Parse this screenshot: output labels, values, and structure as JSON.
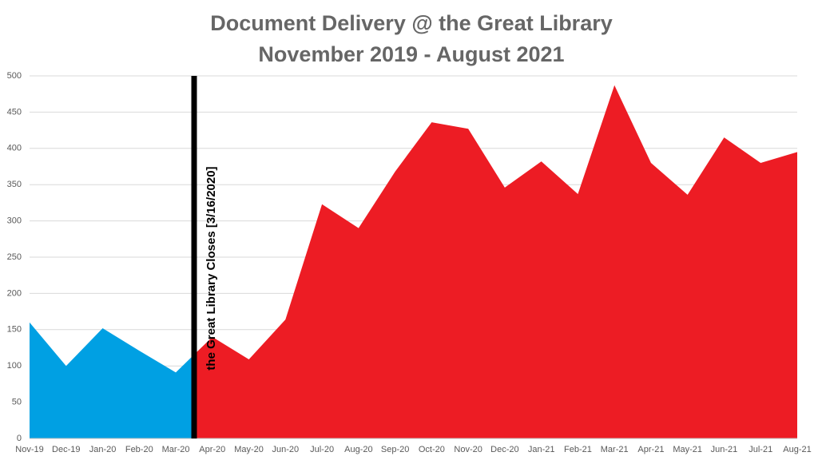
{
  "chart_data": {
    "type": "area",
    "title": "Document Delivery @ the Great Library",
    "subtitle": "November 2019 - August 2021",
    "annotation": "the Great Library Closes [3/16/2020]",
    "categories": [
      "Nov-19",
      "Dec-19",
      "Jan-20",
      "Feb-20",
      "Mar-20",
      "Apr-20",
      "May-20",
      "Jun-20",
      "Jul-20",
      "Aug-20",
      "Sep-20",
      "Oct-20",
      "Nov-20",
      "Dec-20",
      "Jan-21",
      "Feb-21",
      "Mar-21",
      "Apr-21",
      "May-21",
      "Jun-21",
      "Jul-21",
      "Aug-21"
    ],
    "series": [
      {
        "color": "#00a0e3",
        "values": [
          160,
          100,
          152,
          121,
          91,
          140,
          null,
          null,
          null,
          null,
          null,
          null,
          null,
          null,
          null,
          null,
          null,
          null,
          null,
          null,
          null,
          null
        ]
      },
      {
        "color": "#ed1c24",
        "values": [
          null,
          null,
          null,
          null,
          91,
          140,
          109,
          164,
          323,
          290,
          368,
          436,
          427,
          346,
          382,
          337,
          487,
          380,
          336,
          415,
          380,
          395
        ]
      }
    ],
    "ylim": [
      0,
      500
    ],
    "yticks": [
      0,
      50,
      100,
      150,
      200,
      250,
      300,
      350,
      400,
      450,
      500
    ],
    "grid": true
  }
}
